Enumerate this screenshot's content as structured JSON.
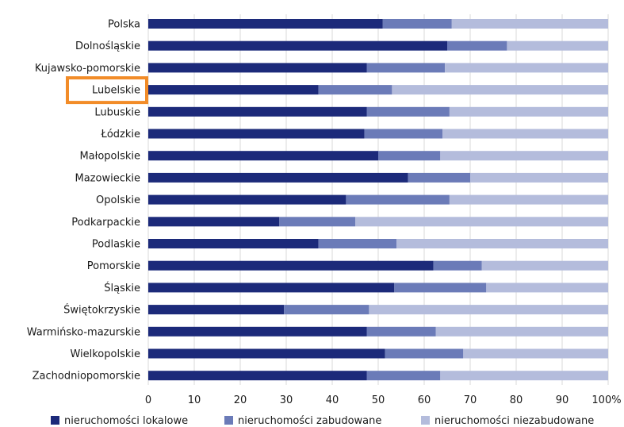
{
  "chart_data": {
    "type": "bar",
    "orientation": "horizontal",
    "stacked": true,
    "categories": [
      "Polska",
      "Dolnośląskie",
      "Kujawsko-pomorskie",
      "Lubelskie",
      "Lubuskie",
      "Łódzkie",
      "Małopolskie",
      "Mazowieckie",
      "Opolskie",
      "Podkarpackie",
      "Podlaskie",
      "Pomorskie",
      "Śląskie",
      "Świętokrzyskie",
      "Warmińsko-mazurskie",
      "Wielkopolskie",
      "Zachodniopomorskie"
    ],
    "series": [
      {
        "name": "nieruchomości lokalowe",
        "color": "#1c2a7a",
        "values": [
          51,
          65,
          47.5,
          37,
          47.5,
          47,
          50,
          56.5,
          43,
          28.5,
          37,
          62,
          53.5,
          29.5,
          47.5,
          51.5,
          47.5
        ]
      },
      {
        "name": "nieruchomości zabudowane",
        "color": "#6b7bb8",
        "values": [
          15,
          13,
          17,
          16,
          18,
          17,
          13.5,
          13.5,
          22.5,
          16.5,
          17,
          10.5,
          20,
          18.5,
          15,
          17,
          16
        ]
      },
      {
        "name": "nieruchomości niezabudowane",
        "color": "#b4bcdc",
        "values": [
          34,
          22,
          35.5,
          47,
          34.5,
          36,
          36.5,
          30,
          34.5,
          55,
          46,
          27.5,
          26.5,
          52,
          37.5,
          31.5,
          36.5
        ]
      }
    ],
    "xlim": [
      0,
      100
    ],
    "xticks": [
      "0",
      "10",
      "20",
      "30",
      "40",
      "50",
      "60",
      "70",
      "80",
      "90",
      "100%"
    ],
    "highlighted_category": "Lubelskie",
    "highlight_color": "#f28c28",
    "legend_position": "bottom",
    "grid": true
  }
}
